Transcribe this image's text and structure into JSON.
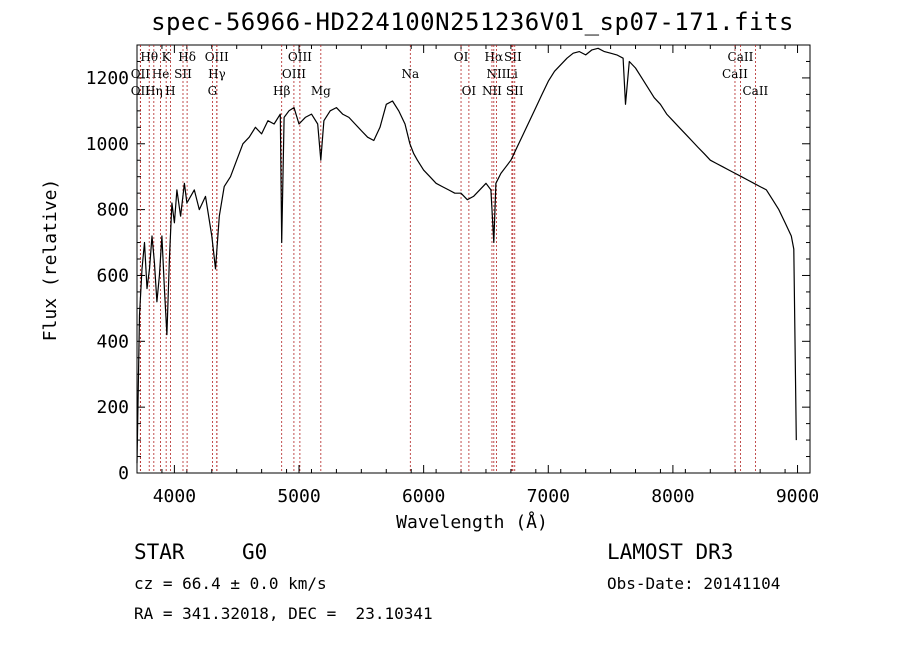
{
  "title": "spec-56966-HD224100N251236V01_sp07-171.fits",
  "chart_data": {
    "type": "line",
    "title": "spec-56966-HD224100N251236V01_sp07-171.fits",
    "xlabel": "Wavelength (Å)",
    "ylabel": "Flux (relative)",
    "xlim": [
      3700,
      9100
    ],
    "ylim": [
      0,
      1300
    ],
    "x_ticks": [
      4000,
      5000,
      6000,
      7000,
      8000,
      9000
    ],
    "y_ticks": [
      0,
      200,
      400,
      600,
      800,
      1000,
      1200
    ],
    "grid": false,
    "series": [
      {
        "x": [
          3700,
          3720,
          3740,
          3760,
          3780,
          3800,
          3820,
          3840,
          3860,
          3880,
          3900,
          3920,
          3940,
          3960,
          3980,
          4000,
          4020,
          4050,
          4080,
          4100,
          4130,
          4160,
          4200,
          4250,
          4300,
          4330,
          4360,
          4400,
          4450,
          4500,
          4550,
          4600,
          4650,
          4700,
          4750,
          4800,
          4850,
          4861,
          4880,
          4920,
          4960,
          5000,
          5050,
          5100,
          5150,
          5175,
          5200,
          5250,
          5300,
          5350,
          5400,
          5450,
          5500,
          5550,
          5600,
          5650,
          5700,
          5750,
          5800,
          5850,
          5890,
          5920,
          5950,
          6000,
          6050,
          6100,
          6150,
          6200,
          6250,
          6300,
          6350,
          6400,
          6450,
          6500,
          6540,
          6563,
          6580,
          6620,
          6660,
          6700,
          6750,
          6800,
          6850,
          6900,
          6950,
          7000,
          7050,
          7100,
          7150,
          7200,
          7250,
          7300,
          7350,
          7400,
          7450,
          7500,
          7550,
          7600,
          7620,
          7650,
          7700,
          7750,
          7800,
          7850,
          7900,
          7950,
          8000,
          8050,
          8100,
          8150,
          8200,
          8250,
          8300,
          8350,
          8400,
          8450,
          8500,
          8550,
          8600,
          8650,
          8700,
          8750,
          8800,
          8850,
          8900,
          8950,
          8970,
          8990
        ],
        "y": [
          30,
          480,
          620,
          700,
          560,
          620,
          720,
          640,
          520,
          600,
          720,
          560,
          420,
          650,
          820,
          760,
          860,
          780,
          880,
          820,
          840,
          860,
          800,
          840,
          720,
          620,
          780,
          870,
          900,
          950,
          1000,
          1020,
          1050,
          1030,
          1070,
          1060,
          1090,
          700,
          1080,
          1100,
          1110,
          1060,
          1080,
          1090,
          1060,
          950,
          1070,
          1100,
          1110,
          1090,
          1080,
          1060,
          1040,
          1020,
          1010,
          1050,
          1120,
          1130,
          1100,
          1060,
          1000,
          970,
          950,
          920,
          900,
          880,
          870,
          860,
          850,
          850,
          830,
          840,
          860,
          880,
          860,
          700,
          880,
          910,
          930,
          950,
          990,
          1030,
          1070,
          1110,
          1150,
          1190,
          1220,
          1240,
          1260,
          1275,
          1280,
          1270,
          1285,
          1290,
          1280,
          1275,
          1270,
          1260,
          1120,
          1250,
          1230,
          1200,
          1170,
          1140,
          1120,
          1090,
          1070,
          1050,
          1030,
          1010,
          990,
          970,
          950,
          940,
          930,
          920,
          910,
          900,
          890,
          880,
          870,
          860,
          830,
          800,
          760,
          720,
          680,
          100
        ]
      }
    ],
    "line_markers": [
      {
        "label": "Hθ",
        "x": 3798,
        "row": 0
      },
      {
        "label": "K",
        "x": 3934,
        "row": 0
      },
      {
        "label": "Hδ",
        "x": 4102,
        "row": 0
      },
      {
        "label": "OIII",
        "x": 4340,
        "row": 0
      },
      {
        "label": "OIII",
        "x": 5007,
        "row": 0
      },
      {
        "label": "OI",
        "x": 6300,
        "row": 0
      },
      {
        "label": "Hα",
        "x": 6563,
        "row": 0
      },
      {
        "label": "SII",
        "x": 6716,
        "row": 0
      },
      {
        "label": "CaII",
        "x": 8542,
        "row": 0
      },
      {
        "label": "OII",
        "x": 3727,
        "row": 1
      },
      {
        "label": "He",
        "x": 3889,
        "row": 1
      },
      {
        "label": "SII",
        "x": 4069,
        "row": 1
      },
      {
        "label": "Hγ",
        "x": 4341,
        "row": 1
      },
      {
        "label": "OIII",
        "x": 4959,
        "row": 1
      },
      {
        "label": "Na",
        "x": 5893,
        "row": 1
      },
      {
        "label": "NII",
        "x": 6584,
        "row": 1
      },
      {
        "label": "Li",
        "x": 6708,
        "row": 1
      },
      {
        "label": "CaII",
        "x": 8498,
        "row": 1
      },
      {
        "label": "OII",
        "x": 3727,
        "row": 2
      },
      {
        "label": "Hη",
        "x": 3835,
        "row": 2
      },
      {
        "label": "H",
        "x": 3968,
        "row": 2
      },
      {
        "label": "G",
        "x": 4305,
        "row": 2
      },
      {
        "label": "Hβ",
        "x": 4861,
        "row": 2
      },
      {
        "label": "Mg",
        "x": 5175,
        "row": 2
      },
      {
        "label": "OI",
        "x": 6363,
        "row": 2
      },
      {
        "label": "NII",
        "x": 6548,
        "row": 2
      },
      {
        "label": "SII",
        "x": 6731,
        "row": 2
      },
      {
        "label": "CaII",
        "x": 8662,
        "row": 2
      }
    ]
  },
  "info": {
    "object_type": "STAR",
    "subclass": "G0",
    "survey": "LAMOST DR3",
    "cz": "cz = 66.4 ± 0.0 km/s",
    "obs_date": "Obs-Date: 20141104",
    "coords": "RA = 341.32018, DEC =  23.10341"
  }
}
